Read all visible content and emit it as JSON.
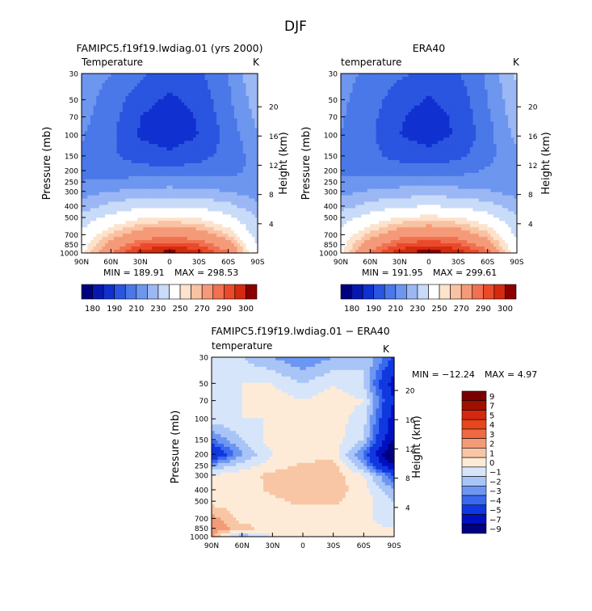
{
  "page_title": "DJF",
  "colors": {
    "abs": [
      "#00007f",
      "#0718b0",
      "#1030d0",
      "#2a55e0",
      "#4a78e8",
      "#6d96ef",
      "#9bb7f4",
      "#c8dbf8",
      "#ffffff",
      "#fde2cc",
      "#f9c2a2",
      "#f59a78",
      "#f07050",
      "#ea4a2a",
      "#d42a0e",
      "#8a0000"
    ],
    "diff": [
      "#000080",
      "#0010c0",
      "#1038e0",
      "#3a68ee",
      "#6d96f2",
      "#a9c4f6",
      "#d6e5fa",
      "#fdebd8",
      "#f8c6a4",
      "#f39a78",
      "#ef6a40",
      "#e8461c",
      "#d42810",
      "#a01000",
      "#7a0000"
    ]
  },
  "chart_data": [
    {
      "type": "heatmap",
      "title": "FAMIPC5.f19f19.lwdiag.01 (yrs 2000)",
      "subtitle": "Temperature",
      "units": "K",
      "ylabel": "Pressure (mb)",
      "ylabel_right": "Height (km)",
      "x_ticks": [
        "90N",
        "60N",
        "30N",
        "0",
        "30S",
        "60S",
        "90S"
      ],
      "y_ticks": [
        "30",
        "50",
        "70",
        "100",
        "150",
        "200",
        "250",
        "300",
        "400",
        "500",
        "700",
        "850",
        "1000"
      ],
      "height_ticks": [
        "20",
        "16",
        "12",
        "8",
        "4"
      ],
      "min_label": "MIN = 189.91",
      "max_label": "MAX = 298.53",
      "colorbar_labels": [
        "180",
        "190",
        "210",
        "230",
        "250",
        "270",
        "290",
        "300"
      ],
      "latitudes": [
        90,
        60,
        30,
        0,
        -30,
        -60,
        -90
      ],
      "pressures": [
        30,
        50,
        70,
        100,
        150,
        200,
        250,
        300,
        400,
        500,
        700,
        850,
        1000
      ],
      "values": [
        [
          226,
          220,
          212,
          205,
          208,
          220,
          240
        ],
        [
          224,
          216,
          204,
          198,
          203,
          218,
          236
        ],
        [
          223,
          214,
          200,
          195,
          201,
          216,
          233
        ],
        [
          221,
          212,
          199,
          195,
          200,
          214,
          229
        ],
        [
          219,
          212,
          205,
          202,
          206,
          214,
          224
        ],
        [
          218,
          216,
          214,
          213,
          215,
          218,
          222
        ],
        [
          220,
          222,
          224,
          225,
          224,
          222,
          220
        ],
        [
          225,
          230,
          233,
          234,
          233,
          230,
          224
        ],
        [
          235,
          243,
          248,
          249,
          248,
          243,
          233
        ],
        [
          244,
          253,
          259,
          261,
          259,
          253,
          240
        ],
        [
          253,
          266,
          275,
          278,
          275,
          265,
          246
        ],
        [
          256,
          274,
          285,
          288,
          285,
          274,
          250
        ],
        [
          258,
          280,
          293,
          298,
          293,
          281,
          252
        ]
      ]
    },
    {
      "type": "heatmap",
      "title": "ERA40",
      "subtitle": "temperature",
      "units": "K",
      "ylabel": "Pressure (mb)",
      "ylabel_right": "Height (km)",
      "x_ticks": [
        "90N",
        "60N",
        "30N",
        "0",
        "30S",
        "60S",
        "90S"
      ],
      "y_ticks": [
        "30",
        "50",
        "70",
        "100",
        "150",
        "200",
        "250",
        "300",
        "400",
        "500",
        "700",
        "850",
        "1000"
      ],
      "height_ticks": [
        "20",
        "16",
        "12",
        "8",
        "4"
      ],
      "min_label": "MIN = 191.95",
      "max_label": "MAX = 299.61",
      "colorbar_labels": [
        "180",
        "190",
        "210",
        "230",
        "250",
        "270",
        "290",
        "300"
      ],
      "latitudes": [
        90,
        60,
        30,
        0,
        -30,
        -60,
        -90
      ],
      "pressures": [
        30,
        50,
        70,
        100,
        150,
        200,
        250,
        300,
        400,
        500,
        700,
        850,
        1000
      ],
      "values": [
        [
          223,
          218,
          212,
          206,
          209,
          222,
          242
        ],
        [
          222,
          215,
          204,
          199,
          204,
          220,
          238
        ],
        [
          221,
          213,
          201,
          196,
          202,
          218,
          236
        ],
        [
          220,
          212,
          200,
          196,
          201,
          216,
          233
        ],
        [
          218,
          213,
          206,
          203,
          207,
          217,
          228
        ],
        [
          219,
          218,
          216,
          215,
          217,
          221,
          226
        ],
        [
          221,
          223,
          225,
          226,
          225,
          223,
          222
        ],
        [
          226,
          231,
          234,
          235,
          234,
          231,
          226
        ],
        [
          236,
          244,
          249,
          250,
          249,
          244,
          235
        ],
        [
          245,
          254,
          260,
          262,
          260,
          254,
          242
        ],
        [
          254,
          267,
          276,
          279,
          276,
          267,
          248
        ],
        [
          257,
          275,
          286,
          289,
          286,
          275,
          252
        ],
        [
          259,
          281,
          294,
          299,
          294,
          283,
          254
        ]
      ]
    },
    {
      "type": "heatmap",
      "title": "FAMIPC5.f19f19.lwdiag.01 − ERA40",
      "subtitle": "temperature",
      "units": "K",
      "ylabel": "Pressure (mb)",
      "ylabel_right": "Height (km)",
      "x_ticks": [
        "90N",
        "60N",
        "30N",
        "0",
        "30S",
        "60S",
        "90S"
      ],
      "y_ticks": [
        "30",
        "50",
        "70",
        "100",
        "150",
        "200",
        "250",
        "300",
        "400",
        "500",
        "700",
        "850",
        "1000"
      ],
      "height_ticks": [
        "20",
        "16",
        "12",
        "8",
        "4"
      ],
      "min_label": "MIN = −12.24",
      "max_label": "MAX =    4.97",
      "colorbar_labels": [
        "9",
        "7",
        "5",
        "4",
        "3",
        "2",
        "1",
        "0",
        "−1",
        "−2",
        "−3",
        "−4",
        "−5",
        "−7",
        "−9"
      ],
      "latitudes": [
        90,
        60,
        30,
        0,
        -30,
        -60,
        -90
      ],
      "pressures": [
        30,
        50,
        70,
        100,
        150,
        200,
        250,
        300,
        400,
        500,
        700,
        850,
        1000
      ],
      "values": [
        [
          -2,
          -2,
          -3,
          -4,
          -3,
          -2,
          -5
        ],
        [
          -1.5,
          -1,
          -1,
          -2,
          -1,
          -2,
          -8
        ],
        [
          -1,
          -1,
          -0.5,
          -1,
          -0.5,
          -1,
          -7
        ],
        [
          -1.5,
          -1,
          -1,
          -0.5,
          -0.5,
          -1.5,
          -8
        ],
        [
          -4,
          -2,
          -0.5,
          -0.5,
          -0.5,
          -2,
          -9
        ],
        [
          -7,
          -3,
          -1,
          -0.5,
          -0.5,
          -4,
          -12
        ],
        [
          -3,
          -1.5,
          -0.5,
          0.2,
          0.5,
          -3,
          -9
        ],
        [
          -1,
          -0.5,
          0.3,
          0.5,
          0.5,
          -1,
          -5
        ],
        [
          -0.5,
          -0.5,
          0.2,
          0.5,
          0.5,
          -0.5,
          -3
        ],
        [
          -0.5,
          -0.5,
          -0.2,
          0.2,
          0.2,
          -0.5,
          -2
        ],
        [
          1.5,
          -0.5,
          -0.5,
          -0.5,
          -0.5,
          -0.5,
          -2
        ],
        [
          2,
          0.5,
          -0.5,
          -0.5,
          -0.5,
          -0.5,
          -1
        ],
        [
          1,
          -3,
          -1,
          -0.5,
          -0.5,
          -0.5,
          -1
        ]
      ]
    }
  ]
}
